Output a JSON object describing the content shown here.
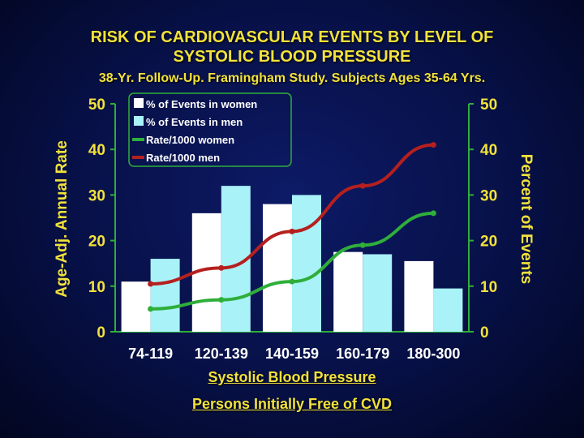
{
  "chart_data": {
    "type": "bar",
    "title": "RISK OF CARDIOVASCULAR EVENTS BY LEVEL OF",
    "title_line2": "SYSTOLIC BLOOD PRESSURE",
    "subtitle": "38-Yr. Follow-Up. Framingham Study. Subjects Ages 35-64 Yrs.",
    "xlabel": "Systolic Blood Pressure",
    "footnote": "Persons Initially Free of CVD",
    "ylabel_left": "Age-Adj. Annual Rate",
    "ylabel_right": "Percent of Events",
    "categories": [
      "74-119",
      "120-139",
      "140-159",
      "160-179",
      "180-300"
    ],
    "ylim": [
      0,
      50
    ],
    "yticks": [
      "0",
      "10",
      "20",
      "30",
      "40",
      "50"
    ],
    "grid": false,
    "legend_placement": "top-left",
    "series": [
      {
        "name": "% of Events in women",
        "kind": "bar",
        "color": "#ffffff",
        "values": [
          11,
          26,
          28,
          17.5,
          15.5
        ]
      },
      {
        "name": "% of Events in men",
        "kind": "bar",
        "color": "#a8f2f8",
        "values": [
          16,
          32,
          30,
          17,
          9.5
        ]
      },
      {
        "name": "Rate/1000 women",
        "kind": "line",
        "color": "#2fae3a",
        "values": [
          5,
          7,
          11,
          19,
          26
        ]
      },
      {
        "name": "Rate/1000 men",
        "kind": "line",
        "color": "#b5201f",
        "values": [
          10.5,
          14,
          22,
          32,
          41
        ]
      }
    ],
    "colors": {
      "text": "#f2e23a",
      "axis": "#2fae3a",
      "legend_border": "#2fae3a"
    }
  }
}
